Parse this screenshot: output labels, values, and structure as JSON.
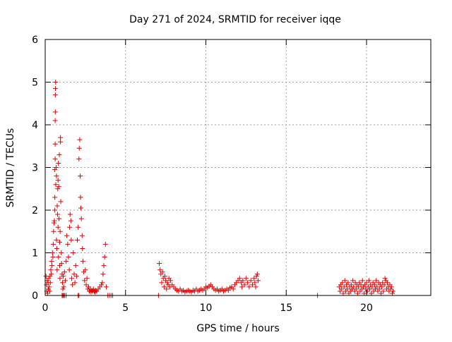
{
  "chart_data": {
    "type": "scatter",
    "title": "Day 271 of 2024, SRMTID for receiver iqqe",
    "xlabel": "GPS time / hours",
    "ylabel": "SRMTID / TECUs",
    "xlim": [
      0,
      24
    ],
    "ylim": [
      0,
      6
    ],
    "xticks": [
      0,
      5,
      10,
      15,
      20
    ],
    "yticks": [
      0,
      1,
      2,
      3,
      4,
      5,
      6
    ],
    "grid": true,
    "marker": "+",
    "colors": {
      "points": "#dd0000",
      "grid": "#a0a0a0",
      "axes": "#000000"
    },
    "series": [
      {
        "name": "SRMTID",
        "points": [
          [
            0.05,
            0.45
          ],
          [
            0.08,
            0.25
          ],
          [
            0.1,
            0.1
          ],
          [
            0.12,
            0.35
          ],
          [
            0.15,
            0.05
          ],
          [
            0.18,
            0.3
          ],
          [
            0.2,
            0.15
          ],
          [
            0.22,
            0.4
          ],
          [
            0.25,
            0.2
          ],
          [
            0.28,
            0.1
          ],
          [
            0.3,
            0.45
          ],
          [
            0.32,
            0.3
          ],
          [
            0.35,
            0.6
          ],
          [
            0.38,
            0.5
          ],
          [
            0.4,
            0.8
          ],
          [
            0.42,
            0.7
          ],
          [
            0.45,
            1.0
          ],
          [
            0.48,
            0.9
          ],
          [
            0.5,
            1.2
          ],
          [
            0.52,
            1.5
          ],
          [
            0.55,
            1.7
          ],
          [
            0.57,
            1.75
          ],
          [
            0.6,
            2.0
          ],
          [
            0.6,
            2.3
          ],
          [
            0.6,
            2.95
          ],
          [
            0.62,
            3.2
          ],
          [
            0.62,
            3.55
          ],
          [
            0.62,
            4.1
          ],
          [
            0.63,
            4.3
          ],
          [
            0.63,
            4.7
          ],
          [
            0.64,
            4.85
          ],
          [
            0.65,
            5.0
          ],
          [
            0.66,
            2.6
          ],
          [
            0.68,
            3.0
          ],
          [
            0.7,
            2.8
          ],
          [
            0.7,
            1.3
          ],
          [
            0.72,
            1.1
          ],
          [
            0.74,
            0.6
          ],
          [
            0.75,
            2.1
          ],
          [
            0.77,
            1.9
          ],
          [
            0.78,
            2.5
          ],
          [
            0.8,
            2.7
          ],
          [
            0.8,
            1.6
          ],
          [
            0.82,
            3.1
          ],
          [
            0.83,
            0.9
          ],
          [
            0.85,
            2.55
          ],
          [
            0.86,
            1.8
          ],
          [
            0.88,
            3.3
          ],
          [
            0.9,
            1.25
          ],
          [
            0.9,
            0.7
          ],
          [
            0.92,
            0.4
          ],
          [
            0.93,
            1.5
          ],
          [
            0.95,
            3.6
          ],
          [
            0.95,
            3.7
          ],
          [
            0.97,
            2.2
          ],
          [
            1.0,
            1.0
          ],
          [
            1.02,
            0.75
          ],
          [
            1.05,
            0.5
          ],
          [
            1.08,
            0.3
          ],
          [
            1.1,
            0.15
          ],
          [
            1.12,
            0.45
          ],
          [
            1.15,
            0.2
          ],
          [
            1.2,
            0.55
          ],
          [
            1.25,
            0.35
          ],
          [
            1.3,
            0.8
          ],
          [
            1.35,
            1.4
          ],
          [
            1.4,
            1.2
          ],
          [
            1.45,
            0.9
          ],
          [
            1.5,
            0.6
          ],
          [
            1.52,
            1.6
          ],
          [
            1.55,
            1.9
          ],
          [
            1.6,
            1.75
          ],
          [
            1.62,
            1.3
          ],
          [
            1.65,
            0.4
          ],
          [
            1.7,
            0.25
          ],
          [
            1.75,
            1.0
          ],
          [
            1.8,
            0.5
          ],
          [
            1.85,
            0.3
          ],
          [
            1.9,
            0.7
          ],
          [
            1.95,
            0.45
          ],
          [
            2.0,
            1.3
          ],
          [
            2.05,
            1.6
          ],
          [
            2.1,
            3.2
          ],
          [
            2.12,
            3.45
          ],
          [
            2.15,
            3.65
          ],
          [
            2.18,
            2.8
          ],
          [
            2.2,
            2.3
          ],
          [
            2.22,
            2.05
          ],
          [
            2.25,
            1.8
          ],
          [
            2.3,
            1.4
          ],
          [
            2.32,
            1.1
          ],
          [
            2.35,
            0.8
          ],
          [
            2.4,
            0.55
          ],
          [
            2.45,
            0.35
          ],
          [
            2.5,
            0.6
          ],
          [
            2.55,
            0.25
          ],
          [
            2.6,
            0.4
          ],
          [
            2.65,
            0.15
          ],
          [
            2.7,
            0.2
          ],
          [
            2.75,
            0.1
          ],
          [
            2.8,
            0.15
          ],
          [
            2.85,
            0.08
          ],
          [
            2.9,
            0.12
          ],
          [
            2.95,
            0.1
          ],
          [
            3.0,
            0.15
          ],
          [
            3.05,
            0.1
          ],
          [
            3.1,
            0.08
          ],
          [
            3.15,
            0.12
          ],
          [
            3.2,
            0.1
          ],
          [
            3.3,
            0.15
          ],
          [
            3.4,
            0.2
          ],
          [
            3.5,
            0.25
          ],
          [
            3.55,
            0.3
          ],
          [
            3.6,
            0.5
          ],
          [
            3.65,
            0.7
          ],
          [
            3.7,
            0.9
          ],
          [
            3.75,
            1.2
          ],
          [
            3.8,
            0.2
          ],
          [
            3.9,
            0.0
          ],
          [
            4.0,
            0.0
          ],
          [
            4.1,
            0.0
          ],
          [
            4.2,
            0.0
          ],
          [
            1.05,
            0.0
          ],
          [
            1.1,
            0.0
          ],
          [
            1.15,
            0.0
          ],
          [
            1.2,
            0.0
          ],
          [
            1.3,
            0.0
          ],
          [
            2.05,
            0.0
          ],
          [
            2.1,
            0.0
          ],
          [
            7.05,
            0.0
          ],
          [
            7.1,
            0.75
          ],
          [
            7.15,
            0.6
          ],
          [
            7.2,
            0.5
          ],
          [
            7.25,
            0.3
          ],
          [
            7.3,
            0.55
          ],
          [
            7.35,
            0.4
          ],
          [
            7.4,
            0.2
          ],
          [
            7.45,
            0.45
          ],
          [
            7.5,
            0.35
          ],
          [
            7.55,
            0.15
          ],
          [
            7.6,
            0.3
          ],
          [
            7.65,
            0.25
          ],
          [
            7.7,
            0.4
          ],
          [
            7.75,
            0.2
          ],
          [
            7.8,
            0.35
          ],
          [
            7.9,
            0.25
          ],
          [
            8.0,
            0.2
          ],
          [
            8.1,
            0.15
          ],
          [
            8.2,
            0.12
          ],
          [
            8.3,
            0.1
          ],
          [
            8.4,
            0.15
          ],
          [
            8.5,
            0.1
          ],
          [
            8.6,
            0.12
          ],
          [
            8.7,
            0.08
          ],
          [
            8.8,
            0.1
          ],
          [
            8.9,
            0.12
          ],
          [
            9.0,
            0.1
          ],
          [
            9.1,
            0.08
          ],
          [
            9.2,
            0.12
          ],
          [
            9.3,
            0.1
          ],
          [
            9.4,
            0.15
          ],
          [
            9.5,
            0.1
          ],
          [
            9.6,
            0.12
          ],
          [
            9.7,
            0.15
          ],
          [
            9.8,
            0.12
          ],
          [
            9.9,
            0.15
          ],
          [
            10.0,
            0.2
          ],
          [
            10.1,
            0.18
          ],
          [
            10.2,
            0.22
          ],
          [
            10.3,
            0.25
          ],
          [
            10.4,
            0.2
          ],
          [
            10.5,
            0.15
          ],
          [
            10.6,
            0.12
          ],
          [
            10.7,
            0.15
          ],
          [
            10.8,
            0.1
          ],
          [
            10.9,
            0.12
          ],
          [
            11.0,
            0.15
          ],
          [
            11.1,
            0.1
          ],
          [
            11.2,
            0.12
          ],
          [
            11.3,
            0.15
          ],
          [
            11.4,
            0.12
          ],
          [
            11.5,
            0.18
          ],
          [
            11.6,
            0.2
          ],
          [
            11.7,
            0.15
          ],
          [
            11.8,
            0.25
          ],
          [
            11.9,
            0.3
          ],
          [
            12.0,
            0.35
          ],
          [
            12.1,
            0.4
          ],
          [
            12.2,
            0.3
          ],
          [
            12.25,
            0.2
          ],
          [
            12.3,
            0.35
          ],
          [
            12.4,
            0.25
          ],
          [
            12.5,
            0.4
          ],
          [
            12.6,
            0.3
          ],
          [
            12.7,
            0.2
          ],
          [
            12.8,
            0.35
          ],
          [
            12.9,
            0.25
          ],
          [
            13.0,
            0.4
          ],
          [
            13.05,
            0.3
          ],
          [
            13.1,
            0.2
          ],
          [
            13.15,
            0.45
          ],
          [
            13.2,
            0.5
          ],
          [
            13.25,
            0.35
          ],
          [
            16.95,
            0.0
          ],
          [
            18.3,
            0.2
          ],
          [
            18.35,
            0.1
          ],
          [
            18.4,
            0.25
          ],
          [
            18.45,
            0.15
          ],
          [
            18.5,
            0.3
          ],
          [
            18.55,
            0.05
          ],
          [
            18.6,
            0.2
          ],
          [
            18.65,
            0.35
          ],
          [
            18.7,
            0.1
          ],
          [
            18.75,
            0.25
          ],
          [
            18.8,
            0.15
          ],
          [
            18.85,
            0.3
          ],
          [
            18.9,
            0.05
          ],
          [
            18.95,
            0.2
          ],
          [
            19.0,
            0.1
          ],
          [
            19.05,
            0.25
          ],
          [
            19.1,
            0.15
          ],
          [
            19.15,
            0.35
          ],
          [
            19.2,
            0.2
          ],
          [
            19.25,
            0.1
          ],
          [
            19.3,
            0.3
          ],
          [
            19.35,
            0.15
          ],
          [
            19.4,
            0.25
          ],
          [
            19.45,
            0.05
          ],
          [
            19.5,
            0.2
          ],
          [
            19.55,
            0.3
          ],
          [
            19.6,
            0.1
          ],
          [
            19.65,
            0.25
          ],
          [
            19.7,
            0.15
          ],
          [
            19.75,
            0.35
          ],
          [
            19.8,
            0.2
          ],
          [
            19.85,
            0.05
          ],
          [
            19.9,
            0.25
          ],
          [
            19.95,
            0.15
          ],
          [
            20.0,
            0.3
          ],
          [
            20.05,
            0.1
          ],
          [
            20.1,
            0.2
          ],
          [
            20.15,
            0.35
          ],
          [
            20.2,
            0.15
          ],
          [
            20.25,
            0.25
          ],
          [
            20.3,
            0.05
          ],
          [
            20.35,
            0.2
          ],
          [
            20.4,
            0.3
          ],
          [
            20.45,
            0.1
          ],
          [
            20.5,
            0.25
          ],
          [
            20.55,
            0.15
          ],
          [
            20.6,
            0.35
          ],
          [
            20.65,
            0.2
          ],
          [
            20.7,
            0.1
          ],
          [
            20.75,
            0.3
          ],
          [
            20.8,
            0.15
          ],
          [
            20.85,
            0.25
          ],
          [
            20.9,
            0.05
          ],
          [
            20.95,
            0.2
          ],
          [
            21.0,
            0.3
          ],
          [
            21.05,
            0.1
          ],
          [
            21.1,
            0.25
          ],
          [
            21.15,
            0.4
          ],
          [
            21.2,
            0.35
          ],
          [
            21.25,
            0.15
          ],
          [
            21.3,
            0.3
          ],
          [
            21.35,
            0.2
          ],
          [
            21.4,
            0.1
          ],
          [
            21.45,
            0.25
          ],
          [
            21.5,
            0.15
          ],
          [
            21.55,
            0.2
          ],
          [
            21.6,
            0.05
          ],
          [
            21.65,
            0.1
          ]
        ]
      }
    ]
  }
}
